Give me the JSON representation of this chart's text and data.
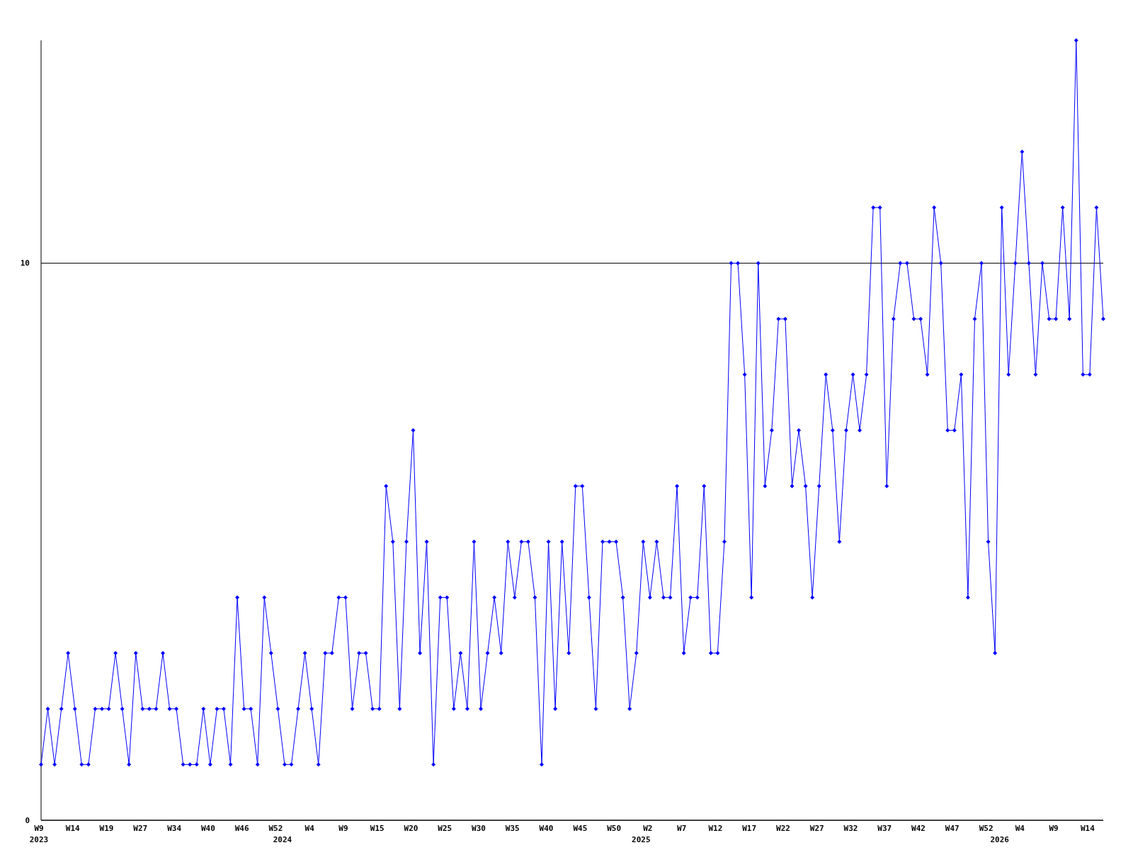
{
  "chart_data": {
    "type": "line",
    "categories": [
      "W9\n2023",
      null,
      null,
      null,
      null,
      "W14",
      null,
      null,
      null,
      null,
      "W19",
      null,
      null,
      null,
      null,
      "W27",
      null,
      null,
      null,
      null,
      "W34",
      null,
      null,
      null,
      null,
      "W40",
      null,
      null,
      null,
      null,
      "W46",
      null,
      null,
      null,
      null,
      "W52",
      "\n2024",
      null,
      null,
      null,
      "W4",
      null,
      null,
      null,
      null,
      "W9",
      null,
      null,
      null,
      null,
      "W15",
      null,
      null,
      null,
      null,
      "W20",
      null,
      null,
      null,
      null,
      "W25",
      null,
      null,
      null,
      null,
      "W30",
      null,
      null,
      null,
      null,
      "W35",
      null,
      null,
      null,
      null,
      "W40",
      null,
      null,
      null,
      null,
      "W45",
      null,
      null,
      null,
      null,
      "W50",
      null,
      null,
      null,
      "\n2025",
      "W2",
      null,
      null,
      null,
      null,
      "W7",
      null,
      null,
      null,
      null,
      "W12",
      null,
      null,
      null,
      null,
      "W17",
      null,
      null,
      null,
      null,
      "W22",
      null,
      null,
      null,
      null,
      "W27",
      null,
      null,
      null,
      null,
      "W32",
      null,
      null,
      null,
      null,
      "W37",
      null,
      null,
      null,
      null,
      "W42",
      null,
      null,
      null,
      null,
      "W47",
      null,
      null,
      null,
      null,
      "W52",
      null,
      "\n2026",
      null,
      null,
      "W4",
      null,
      null,
      null,
      null,
      "W9",
      null,
      null,
      null,
      null,
      "W14",
      null,
      null
    ],
    "series": [
      {
        "color": "#0000ff",
        "values": [
          1,
          2,
          1,
          2,
          3,
          2,
          1,
          1,
          2,
          2,
          2,
          3,
          2,
          1,
          3,
          2,
          2,
          2,
          3,
          2,
          2,
          1,
          1,
          1,
          2,
          1,
          2,
          2,
          1,
          4,
          2,
          2,
          1,
          4,
          3,
          2,
          1,
          1,
          2,
          3,
          2,
          1,
          3,
          3,
          4,
          4,
          2,
          3,
          3,
          2,
          2,
          6,
          5,
          2,
          5,
          7,
          3,
          5,
          1,
          4,
          4,
          2,
          3,
          2,
          5,
          2,
          3,
          4,
          3,
          5,
          4,
          5,
          5,
          4,
          1,
          5,
          2,
          5,
          3,
          6,
          6,
          4,
          2,
          5,
          5,
          5,
          4,
          2,
          3,
          5,
          4,
          5,
          4,
          4,
          6,
          3,
          4,
          4,
          6,
          3,
          3,
          5,
          10,
          10,
          8,
          4,
          10,
          6,
          7,
          9,
          9,
          6,
          7,
          6,
          4,
          6,
          8,
          7,
          5,
          7,
          8,
          7,
          8,
          11,
          11,
          6,
          9,
          10,
          10,
          9,
          9,
          8,
          11,
          10,
          7,
          7,
          8,
          4,
          9,
          10,
          5,
          3,
          11,
          8,
          10,
          12,
          10,
          8,
          10,
          9,
          9,
          11,
          9,
          14,
          8,
          8,
          11,
          9
        ]
      }
    ],
    "ylim": [
      0,
      14
    ],
    "yticks": [
      0,
      10
    ],
    "grid": "y",
    "marker": "diamond",
    "line_style": "solid"
  }
}
